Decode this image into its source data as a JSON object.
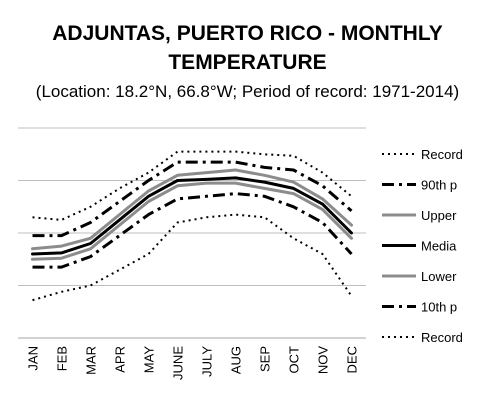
{
  "chart_data": {
    "type": "line",
    "title_line1": "ADJUNTAS, PUERTO RICO - MONTHLY",
    "title_line2": "TEMPERATURE",
    "subtitle": "(Location: 18.2°N, 66.8°W; Period of record: 1971-2014)",
    "categories": [
      "JAN",
      "FEB",
      "MAR",
      "APR",
      "MAY",
      "JUNE",
      "JULY",
      "AUG",
      "SEP",
      "OCT",
      "NOV",
      "DEC"
    ],
    "legend_position": "right",
    "grid": true,
    "y_gridlines": 4,
    "series": [
      {
        "name": "Record",
        "style": "dotted",
        "color": "#000000",
        "values": [
          2.3,
          2.25,
          2.5,
          2.85,
          3.15,
          3.55,
          3.55,
          3.55,
          3.5,
          3.47,
          3.15,
          2.7
        ]
      },
      {
        "name": "90th p",
        "style": "dashdot",
        "color": "#000000",
        "values": [
          1.95,
          1.95,
          2.2,
          2.6,
          3.0,
          3.35,
          3.35,
          3.35,
          3.25,
          3.2,
          2.9,
          2.42
        ]
      },
      {
        "name": "Upper",
        "style": "solid",
        "color": "#8c8c8c",
        "values": [
          1.7,
          1.75,
          1.9,
          2.35,
          2.8,
          3.1,
          3.15,
          3.2,
          3.1,
          2.97,
          2.65,
          2.15
        ]
      },
      {
        "name": "Media",
        "style": "solid",
        "color": "#000000",
        "values": [
          1.6,
          1.62,
          1.8,
          2.25,
          2.7,
          3.0,
          3.02,
          3.05,
          2.97,
          2.85,
          2.55,
          2.0
        ]
      },
      {
        "name": "Lower",
        "style": "solid",
        "color": "#8c8c8c",
        "values": [
          1.5,
          1.52,
          1.7,
          2.15,
          2.6,
          2.9,
          2.95,
          2.95,
          2.85,
          2.75,
          2.45,
          1.9
        ]
      },
      {
        "name": "10th p",
        "style": "dashdot",
        "color": "#000000",
        "values": [
          1.35,
          1.35,
          1.55,
          1.95,
          2.35,
          2.65,
          2.7,
          2.75,
          2.7,
          2.5,
          2.2,
          1.6
        ]
      },
      {
        "name": "Record",
        "style": "dotted",
        "color": "#000000",
        "values": [
          0.72,
          0.88,
          1.0,
          1.3,
          1.6,
          2.2,
          2.3,
          2.35,
          2.3,
          1.9,
          1.6,
          0.8
        ]
      }
    ]
  }
}
